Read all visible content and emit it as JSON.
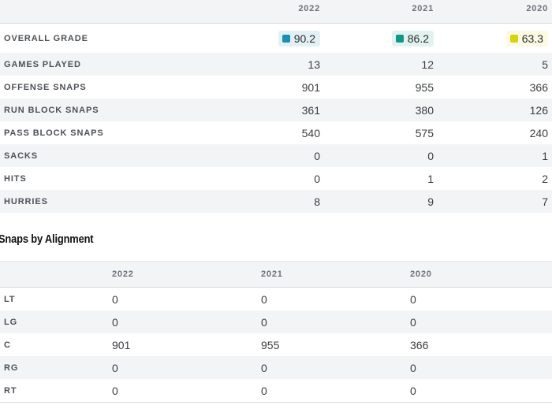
{
  "colors": {
    "accent": "#1f8fc4",
    "grade_blue": "#1a8fb0",
    "grade_teal": "#13968a",
    "grade_yellow": "#d8d20f",
    "badge_blue_bg": "#e3f1f6",
    "badge_teal_bg": "#e1f2ef",
    "badge_yellow_bg": "#fbfae2"
  },
  "stats": {
    "years": [
      "2022",
      "2021",
      "2020"
    ],
    "grade": {
      "label": "OVERALL GRADE",
      "values": [
        "90.2",
        "86.2",
        "63.3"
      ]
    },
    "rows": [
      {
        "label": "GAMES PLAYED",
        "values": [
          "13",
          "12",
          "5"
        ]
      },
      {
        "label": "OFFENSE SNAPS",
        "values": [
          "901",
          "955",
          "366"
        ]
      },
      {
        "label": "RUN BLOCK SNAPS",
        "values": [
          "361",
          "380",
          "126"
        ]
      },
      {
        "label": "PASS BLOCK SNAPS",
        "values": [
          "540",
          "575",
          "240"
        ]
      },
      {
        "label": "SACKS",
        "values": [
          "0",
          "0",
          "1"
        ]
      },
      {
        "label": "HITS",
        "values": [
          "0",
          "1",
          "2"
        ]
      },
      {
        "label": "HURRIES",
        "values": [
          "8",
          "9",
          "7"
        ]
      }
    ]
  },
  "alignment": {
    "title": "Snaps by Alignment",
    "years": [
      "2022",
      "2021",
      "2020"
    ],
    "rows": [
      {
        "label": "LT",
        "values": [
          "0",
          "0",
          "0"
        ]
      },
      {
        "label": "LG",
        "values": [
          "0",
          "0",
          "0"
        ]
      },
      {
        "label": "C",
        "values": [
          "901",
          "955",
          "366"
        ]
      },
      {
        "label": "RG",
        "values": [
          "0",
          "0",
          "0"
        ]
      },
      {
        "label": "RT",
        "values": [
          "0",
          "0",
          "0"
        ]
      }
    ]
  }
}
